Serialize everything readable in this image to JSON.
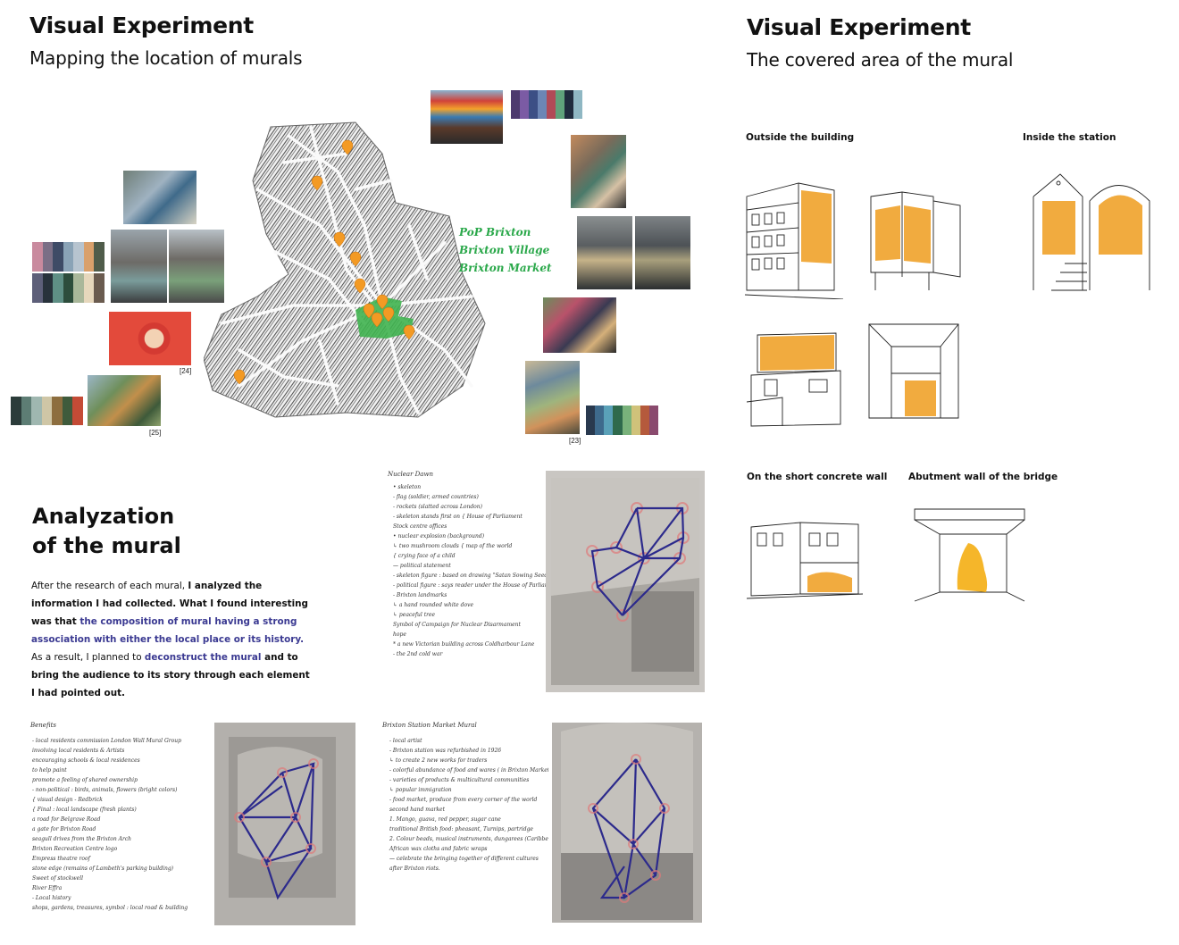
{
  "left_section": {
    "title": "Visual Experiment",
    "subtitle": "Mapping the location of murals",
    "map_labels": [
      "PoP Brixton",
      "Brixton Village",
      "Brixton Market"
    ],
    "citations": [
      "[24]",
      "[25]",
      "[23]"
    ]
  },
  "right_section": {
    "title": "Visual Experiment",
    "subtitle": "The covered area of  the mural",
    "captions": {
      "outside": "Outside the building",
      "inside": "Inside the station",
      "short_wall": "On the short concrete wall",
      "abutment": "Abutment wall of the bridge"
    }
  },
  "analysis": {
    "title_line1": "Analyzation",
    "title_line2": "of the mural",
    "p_intro": "After the research of each mural, ",
    "p_bold1": "I analyzed the information I had collected. What I found interesting was that ",
    "p_hl1": "the composition of mural having a strong association with either the local place or its history.",
    "p_mid": " As a result, I planned to ",
    "p_hl2": "deconstruct the mural",
    "p_bold2": " and to bring the audience to its story through each element I had pointed out."
  },
  "notes": {
    "nuclear_title": "Nuclear Dawn",
    "nuclear_lines": [
      "• skeleton",
      "  - flag (soldier, armed countries)",
      "  - rockets (slatted across London)",
      "  - skeleton stands first on  { House of Parliament",
      "                                 Stock centre offices",
      "• nuclear explosion (background)",
      "     ↳ two mushroom clouds  { map of the world",
      "                             { crying face of a child",
      "— political statement",
      "  - skeleton figure : based on drawing \"Satan Sowing Seeds\"",
      "  - political figure : says reader under the House of Parliament",
      "  - Brixton landmarks",
      "      ↳ a hand rounded white dove",
      "                 ↳ peaceful tree",
      "           Symbol of Campaign for Nuclear Disarmament",
      "        hope",
      "  * a new Victorian building across Coldharbour Lane",
      "  - the 2nd cold war"
    ],
    "benefits_title": "Benefits",
    "benefits_lines": [
      "- local residents commission London Wall Mural Group",
      "        involving local residents & Artists",
      "        encouraging schools & local residences",
      "                to help paint",
      "           promote a feeling of shared ownership",
      "- non-political : birds, animals, flowers (bright colors)",
      "   { visual design - Redbrick",
      "   { Final : local landscape (fresh plants)",
      "      a road for Belgrave Road",
      "      a gate for Brixton Road",
      "      seagull drives from the Brixton Arch",
      "      Brixton Recreation Centre logo",
      "      Empress theatre roof",
      "      stone edge (remains of Lambeth's parking building)",
      "      Sweet of stockwell",
      "      River Effra",
      "- Local history",
      "   shops, gardens, treasures, symbol : local road & building"
    ],
    "market_title": "Brixton Station Market Mural",
    "market_lines": [
      "- local artist",
      "- Brixton station was refurbished in 1926",
      "      ↳ to create 2 new works for traders",
      "- colorful abundance of food and wares ( in Brixton Market)",
      "- varieties of products & multicultural communities",
      "              ↳ popular immigration",
      "- food market, produce from every corner of the world",
      "     second hand market",
      "  1. Mango, guava, red pepper, sugar cane",
      "     traditional British food: pheasant, Turnips, partridge",
      "  2. Colour beads, musical instruments, dungarees (Caribbean)",
      "     African wax cloths and fabric wraps",
      "— celebrate the bringing together of different cultures",
      "     after Brixton riots."
    ]
  },
  "colors": {
    "accent_text": "#3b3a92",
    "sketch_fill": "#f0a22a",
    "map_green": "#2aa84a",
    "pin_orange": "#f39a24",
    "thread_blue": "#2c2a8c"
  }
}
